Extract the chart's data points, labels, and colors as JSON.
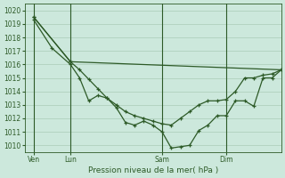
{
  "bg_color": "#cce8dc",
  "line_color": "#2d5a27",
  "grid_color": "#aaccb8",
  "xlabel": "Pression niveau de la mer( hPa )",
  "ylim": [
    1009.5,
    1020.5
  ],
  "yticks": [
    1010,
    1011,
    1012,
    1013,
    1014,
    1015,
    1016,
    1017,
    1018,
    1019,
    1020
  ],
  "xlim": [
    0,
    28
  ],
  "xtick_positions": [
    1,
    5,
    15,
    22
  ],
  "xtick_labels": [
    "Ven",
    "Lun",
    "Sam",
    "Dim"
  ],
  "vlines": [
    1,
    5,
    15,
    22
  ],
  "series_flat": {
    "x": [
      1,
      5,
      28
    ],
    "y": [
      1019.5,
      1016.2,
      1015.6
    ]
  },
  "series_low": {
    "x": [
      1,
      3,
      5,
      6,
      7,
      8,
      9,
      10,
      11,
      12,
      13,
      14,
      15,
      16,
      17,
      18,
      19,
      20,
      21,
      22,
      23,
      24,
      25,
      26,
      27,
      28
    ],
    "y": [
      1019.3,
      1017.2,
      1016.0,
      1015.0,
      1013.3,
      1013.7,
      1013.5,
      1012.8,
      1011.7,
      1011.5,
      1011.8,
      1011.5,
      1011.0,
      1009.8,
      1009.9,
      1010.0,
      1011.1,
      1011.5,
      1012.2,
      1012.2,
      1013.3,
      1013.3,
      1012.9,
      1015.0,
      1015.0,
      1015.6
    ]
  },
  "series_mid": {
    "x": [
      1,
      5,
      6,
      7,
      8,
      9,
      10,
      11,
      12,
      13,
      14,
      15,
      16,
      17,
      18,
      19,
      20,
      21,
      22,
      23,
      24,
      25,
      26,
      27,
      28
    ],
    "y": [
      1019.5,
      1016.2,
      1015.6,
      1014.9,
      1014.2,
      1013.5,
      1013.0,
      1012.5,
      1012.2,
      1012.0,
      1011.8,
      1011.6,
      1011.5,
      1012.0,
      1012.5,
      1013.0,
      1013.3,
      1013.3,
      1013.4,
      1014.0,
      1015.0,
      1015.0,
      1015.2,
      1015.3,
      1015.6
    ]
  }
}
